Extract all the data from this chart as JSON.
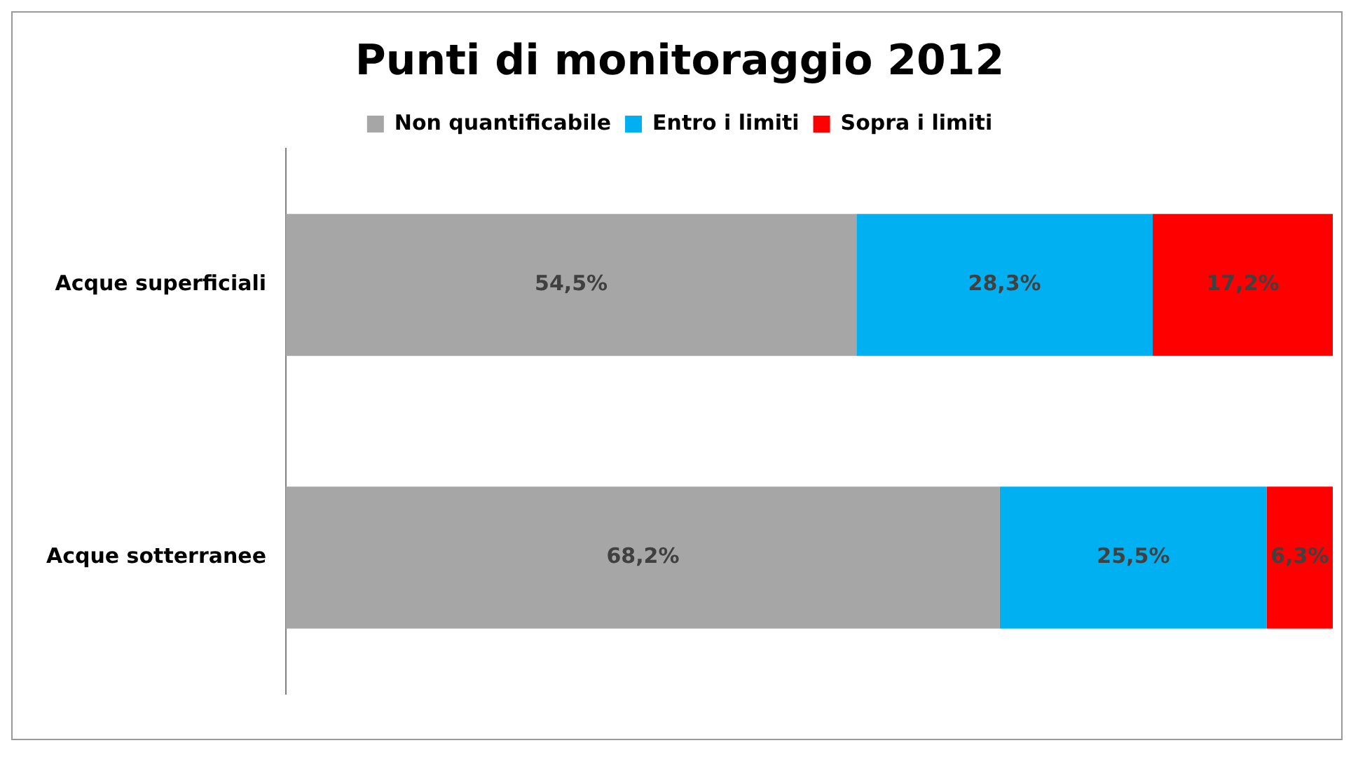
{
  "chart_data": {
    "type": "bar",
    "title": "Punti di monitoraggio 2012",
    "orientation": "horizontal",
    "stacked": true,
    "categories": [
      "Acque superficiali",
      "Acque sotterranee"
    ],
    "series": [
      {
        "name": "Non quantificabile",
        "color": "#a6a6a6",
        "values": [
          54.5,
          68.2
        ],
        "value_labels": [
          "54,5%",
          "68,2%"
        ]
      },
      {
        "name": "Entro i limiti",
        "color": "#00b0f0",
        "values": [
          28.3,
          25.5
        ],
        "value_labels": [
          "28,3%",
          "25,5%"
        ]
      },
      {
        "name": "Sopra i limiti",
        "color": "#ff0000",
        "values": [
          17.2,
          6.3
        ],
        "value_labels": [
          "17,2%",
          "6,3%"
        ]
      }
    ],
    "xlim": [
      0,
      100
    ],
    "tick_labels": "y",
    "grid": false,
    "legend": "top"
  }
}
